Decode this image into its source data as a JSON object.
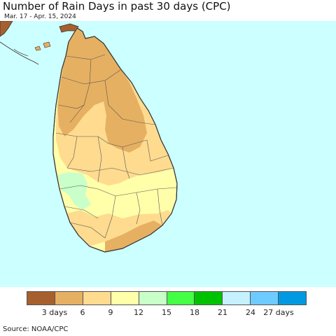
{
  "header": {
    "title": "Number of Rain Days in past 30 days (CPC)",
    "subtitle": "Mar. 17 - Apr. 15, 2024"
  },
  "map": {
    "ocean_color": "#ccffff",
    "land_outline_color": "#333333",
    "regions": [
      {
        "name": "far-north",
        "class": "3-6 days",
        "color": "#e6b062"
      },
      {
        "name": "northern-interior",
        "class": "6-9 days",
        "color": "#fedb8f"
      },
      {
        "name": "west-coast",
        "class": "9-12 days",
        "color": "#ffffaa"
      },
      {
        "name": "west-pocket",
        "class": "12-15 days",
        "color": "#c9ffc9"
      }
    ]
  },
  "legend": {
    "colors": [
      "#a6602e",
      "#e6b062",
      "#fedb8f",
      "#ffffaa",
      "#c9ffc9",
      "#44ff44",
      "#00c200",
      "#c6f1ff",
      "#6ecbff",
      "#0099e2"
    ],
    "labels": [
      "3 days",
      "6",
      "9",
      "12",
      "15",
      "18",
      "21",
      "24",
      "27 days"
    ]
  },
  "footer": {
    "source": "Source: NOAA/CPC"
  }
}
